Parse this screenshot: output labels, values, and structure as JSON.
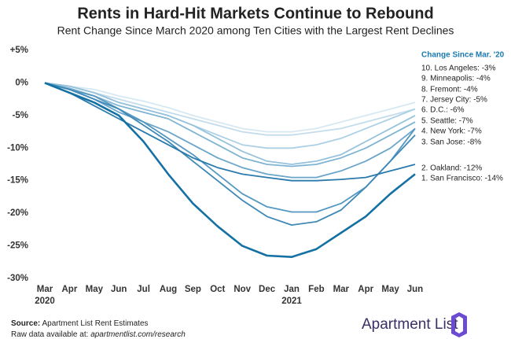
{
  "chart_data": {
    "type": "line",
    "title": "Rents in Hard-Hit Markets Continue to Rebound",
    "subtitle": "Rent Change Since March 2020 among Ten Cities with the Largest Rent Declines",
    "legend_title": "Change Since Mar. '20",
    "categories": [
      "Mar",
      "Apr",
      "May",
      "Jun",
      "Jul",
      "Aug",
      "Sep",
      "Oct",
      "Nov",
      "Dec",
      "Jan",
      "Feb",
      "Mar",
      "Apr",
      "May",
      "Jun"
    ],
    "x_sublabels": [
      "2020",
      null,
      null,
      null,
      null,
      null,
      null,
      null,
      null,
      null,
      "2021",
      null,
      null,
      null,
      null,
      null
    ],
    "ylim": [
      -30,
      5
    ],
    "yticks": [
      {
        "value": 5,
        "label": "+5%"
      },
      {
        "value": 0,
        "label": "0%"
      },
      {
        "value": -5,
        "label": "-5%"
      },
      {
        "value": -10,
        "label": "-10%"
      },
      {
        "value": -15,
        "label": "-15%"
      },
      {
        "value": -20,
        "label": "-20%"
      },
      {
        "value": -25,
        "label": "-25%"
      },
      {
        "value": -30,
        "label": "-30%"
      }
    ],
    "grid": false,
    "series": [
      {
        "name": "10. Los Angeles: -3%",
        "color": "#d6e8f2",
        "values": [
          0,
          -0.5,
          -1,
          -2,
          -2.8,
          -3.8,
          -5,
          -6,
          -7,
          -7.5,
          -7.5,
          -7,
          -6,
          -5,
          -4,
          -3
        ]
      },
      {
        "name": "9. Minneapolis: -4%",
        "color": "#c3dcec",
        "values": [
          0,
          -0.5,
          -1.5,
          -2.5,
          -3.5,
          -4.5,
          -5.5,
          -6.5,
          -7.5,
          -8,
          -8,
          -7.5,
          -7,
          -6,
          -5,
          -4
        ]
      },
      {
        "name": "8. Fremont: -4%",
        "color": "#acd0e5",
        "values": [
          0,
          -0.5,
          -1.5,
          -3,
          -4,
          -5,
          -6.5,
          -8,
          -9.5,
          -10,
          -10,
          -9.5,
          -8.5,
          -7,
          -5.5,
          -4
        ]
      },
      {
        "name": "7. Jersey City: -5%",
        "color": "#96c2dc",
        "values": [
          0,
          -0.5,
          -1.5,
          -3,
          -4,
          -5,
          -6.5,
          -8.5,
          -10.5,
          -12,
          -12.5,
          -12,
          -11,
          -9,
          -7,
          -5
        ]
      },
      {
        "name": "6. D.C.: -6%",
        "color": "#80b4d3",
        "values": [
          0,
          -0.8,
          -2,
          -3.5,
          -4.5,
          -5.5,
          -7.5,
          -9.5,
          -11.5,
          -12.5,
          -12.8,
          -12.5,
          -11.5,
          -10,
          -8,
          -6
        ]
      },
      {
        "name": "5. Seattle: -7%",
        "color": "#6aa6ca",
        "values": [
          0,
          -1,
          -2.5,
          -4.5,
          -6,
          -7.5,
          -9.5,
          -11.5,
          -13,
          -14,
          -14.5,
          -14.5,
          -13.5,
          -12,
          -10,
          -7
        ]
      },
      {
        "name": "4. New York: -7%",
        "color": "#5497c0",
        "values": [
          0,
          -1,
          -2,
          -4,
          -6,
          -8.5,
          -11,
          -14,
          -17,
          -19,
          -19.8,
          -19.8,
          -18.5,
          -16,
          -12,
          -7
        ]
      },
      {
        "name": "3. San Jose: -8%",
        "color": "#3f89b7",
        "values": [
          0,
          -1,
          -2.5,
          -4,
          -6.5,
          -9,
          -12,
          -15,
          -18,
          -20.5,
          -21.8,
          -21.3,
          -19.5,
          -16,
          -12,
          -8
        ]
      },
      {
        "name": "2. Oakland: -12%",
        "color": "#2a7aad",
        "values": [
          0,
          -1.5,
          -3.5,
          -5.5,
          -7.5,
          -9.5,
          -11.5,
          -13,
          -14,
          -14.5,
          -15,
          -15,
          -14.8,
          -14.5,
          -13.5,
          -12.5
        ]
      },
      {
        "name": "1. San Francisco: -14%",
        "color": "#1570a3",
        "values": [
          0,
          -1.5,
          -3,
          -5,
          -9,
          -14,
          -18.5,
          -22,
          -25,
          -26.5,
          -26.7,
          -25.5,
          -23,
          -20.5,
          -17,
          -14
        ]
      }
    ]
  },
  "footer": {
    "source_label": "Source:",
    "source": "Apartment List Rent Estimates",
    "raw_label": "Raw data available at:",
    "raw_url": "apartmentlist.com/research",
    "logo": "Apartment List"
  }
}
